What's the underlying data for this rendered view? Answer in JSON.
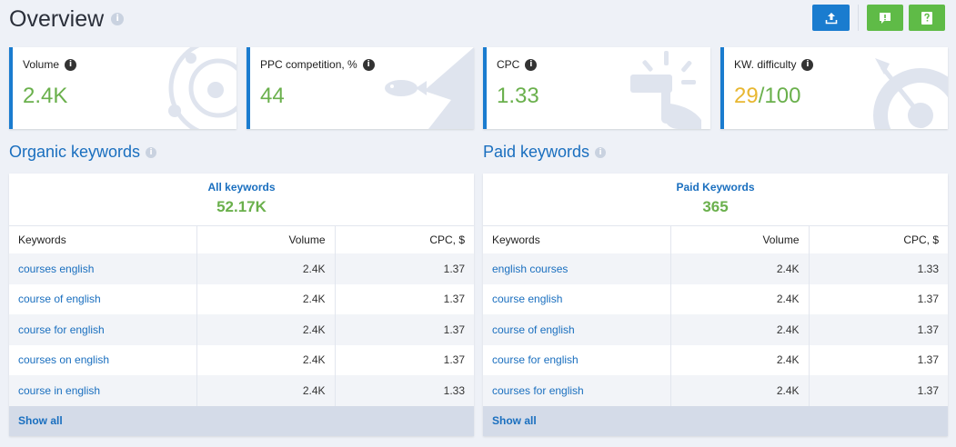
{
  "header": {
    "title": "Overview",
    "info": "i"
  },
  "actions": [
    {
      "name": "export-button",
      "icon": "upload-icon"
    },
    {
      "name": "feedback-button",
      "icon": "exclamation-comment-icon"
    },
    {
      "name": "help-button",
      "icon": "question-book-icon"
    }
  ],
  "colors": {
    "accent": "#1a7ccf",
    "green": "#6ab04c",
    "yellow": "#e8b731",
    "button_green": "#5fbb47"
  },
  "cards": {
    "volume": {
      "label": "Volume",
      "value": "2.4K"
    },
    "ppc": {
      "label": "PPC competition, %",
      "value": "44"
    },
    "cpc": {
      "label": "CPC",
      "value": "1.33"
    },
    "difficulty": {
      "label": "KW. difficulty",
      "value": "29",
      "max": "/100"
    }
  },
  "organic": {
    "title": "Organic keywords",
    "summary_label": "All keywords",
    "summary_value": "52.17K",
    "columns": [
      "Keywords",
      "Volume",
      "CPC, $"
    ],
    "rows": [
      {
        "keyword": "courses english",
        "volume": "2.4K",
        "cpc": "1.37"
      },
      {
        "keyword": "course of english",
        "volume": "2.4K",
        "cpc": "1.37"
      },
      {
        "keyword": "course for english",
        "volume": "2.4K",
        "cpc": "1.37"
      },
      {
        "keyword": "courses on english",
        "volume": "2.4K",
        "cpc": "1.37"
      },
      {
        "keyword": "course in english",
        "volume": "2.4K",
        "cpc": "1.33"
      }
    ],
    "show_all": "Show all"
  },
  "paid": {
    "title": "Paid keywords",
    "summary_label": "Paid Keywords",
    "summary_value": "365",
    "columns": [
      "Keywords",
      "Volume",
      "CPC, $"
    ],
    "rows": [
      {
        "keyword": "english courses",
        "volume": "2.4K",
        "cpc": "1.33"
      },
      {
        "keyword": "course english",
        "volume": "2.4K",
        "cpc": "1.37"
      },
      {
        "keyword": "course of english",
        "volume": "2.4K",
        "cpc": "1.37"
      },
      {
        "keyword": "course for english",
        "volume": "2.4K",
        "cpc": "1.37"
      },
      {
        "keyword": "courses for english",
        "volume": "2.4K",
        "cpc": "1.37"
      }
    ],
    "show_all": "Show all"
  }
}
